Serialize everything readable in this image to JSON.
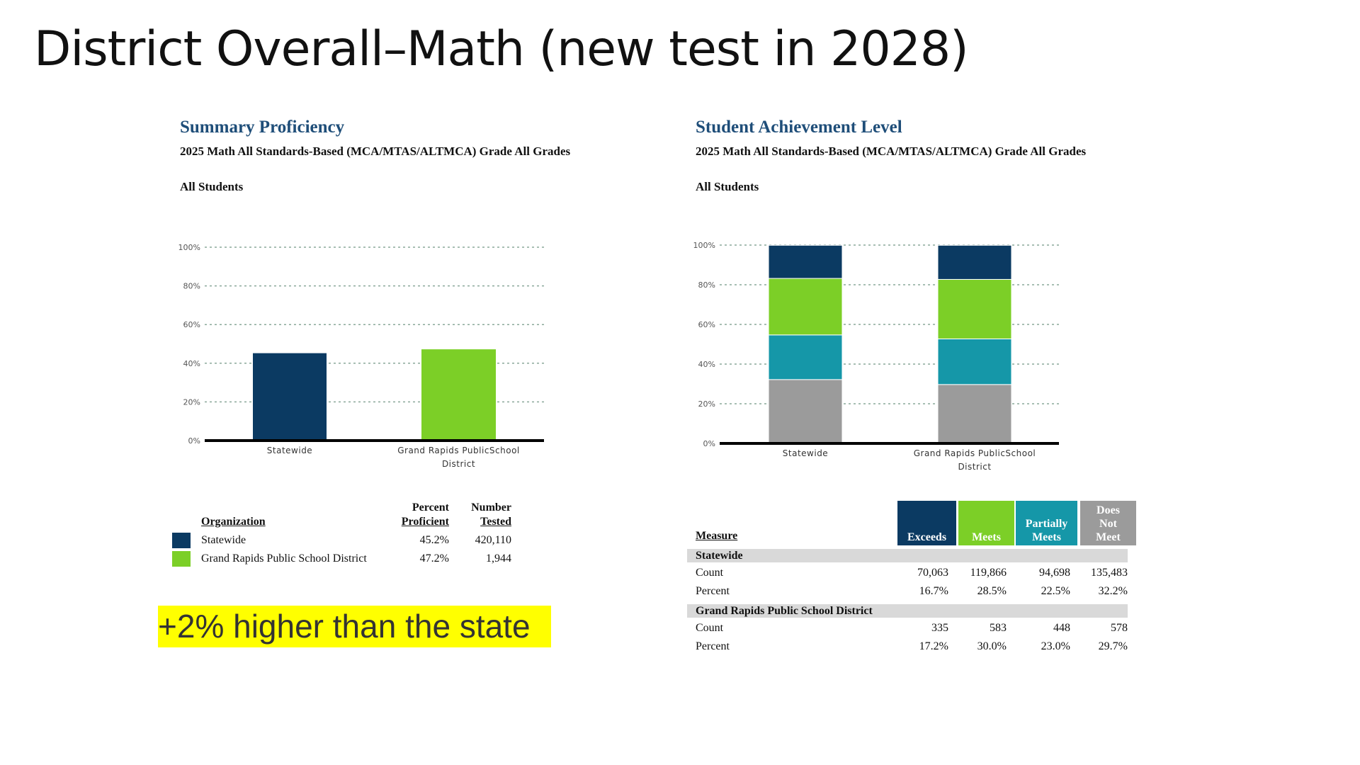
{
  "slide_title": "District Overall–Math (new test in 2028)",
  "callout": "+2% higher than the state",
  "colors": {
    "exceeds": "#0b3a62",
    "meets": "#7ccf27",
    "partially": "#1597a8",
    "does_not": "#9b9b9b",
    "title_blue": "#1f4e79",
    "highlight": "#ffff00"
  },
  "left_panel": {
    "title": "Summary Proficiency",
    "subtitle": "2025 Math All Standards-Based (MCA/MTAS/ALTMCA) Grade All Grades",
    "group": "All Students",
    "legend": {
      "headers": {
        "organization": "Organization",
        "pct_1": "Percent",
        "pct_2": "Proficient",
        "num_1": "Number",
        "num_2": "Tested"
      },
      "rows": [
        {
          "name": "Statewide",
          "percent": "45.2%",
          "tested": "420,110"
        },
        {
          "name": "Grand Rapids Public School District",
          "percent": "47.2%",
          "tested": "1,944"
        }
      ]
    }
  },
  "right_panel": {
    "title": "Student Achievement Level",
    "subtitle": "2025 Math All Standards-Based (MCA/MTAS/ALTMCA) Grade All Grades",
    "group": "All Students",
    "table": {
      "measure_label": "Measure",
      "headers": [
        "Exceeds",
        "Meets",
        "Partially Meets",
        "Does Not Meet"
      ],
      "groups": [
        {
          "name": "Statewide",
          "rows": [
            {
              "label": "Count",
              "values": [
                "70,063",
                "119,866",
                "94,698",
                "135,483"
              ]
            },
            {
              "label": "Percent",
              "values": [
                "16.7%",
                "28.5%",
                "22.5%",
                "32.2%"
              ]
            }
          ]
        },
        {
          "name": "Grand Rapids Public School District",
          "rows": [
            {
              "label": "Count",
              "values": [
                "335",
                "583",
                "448",
                "578"
              ]
            },
            {
              "label": "Percent",
              "values": [
                "17.2%",
                "30.0%",
                "23.0%",
                "29.7%"
              ]
            }
          ]
        }
      ]
    }
  },
  "chart_data": [
    {
      "type": "bar",
      "title": "Summary Proficiency",
      "categories": [
        "Statewide",
        "Grand Rapids PublicSchool District"
      ],
      "category_lines": [
        [
          "Statewide"
        ],
        [
          "Grand Rapids PublicSchool",
          "District"
        ]
      ],
      "values": [
        45.2,
        47.2
      ],
      "colors": [
        "#0b3a62",
        "#7ccf27"
      ],
      "yticks": [
        "0%",
        "20%",
        "40%",
        "60%",
        "80%",
        "100%"
      ],
      "ylim": [
        0,
        100
      ],
      "grid": true
    },
    {
      "type": "bar",
      "stacked": true,
      "title": "Student Achievement Level",
      "categories": [
        "Statewide",
        "Grand Rapids PublicSchool District"
      ],
      "category_lines": [
        [
          "Statewide"
        ],
        [
          "Grand Rapids PublicSchool",
          "District"
        ]
      ],
      "series": [
        {
          "name": "Does Not Meet",
          "color": "#9b9b9b",
          "values": [
            32.2,
            29.7
          ]
        },
        {
          "name": "Partially Meets",
          "color": "#1597a8",
          "values": [
            22.5,
            23.0
          ]
        },
        {
          "name": "Meets",
          "color": "#7ccf27",
          "values": [
            28.5,
            30.0
          ]
        },
        {
          "name": "Exceeds",
          "color": "#0b3a62",
          "values": [
            16.7,
            17.2
          ]
        }
      ],
      "yticks": [
        "0%",
        "20%",
        "40%",
        "60%",
        "80%",
        "100%"
      ],
      "ylim": [
        0,
        100
      ],
      "grid": true
    }
  ]
}
